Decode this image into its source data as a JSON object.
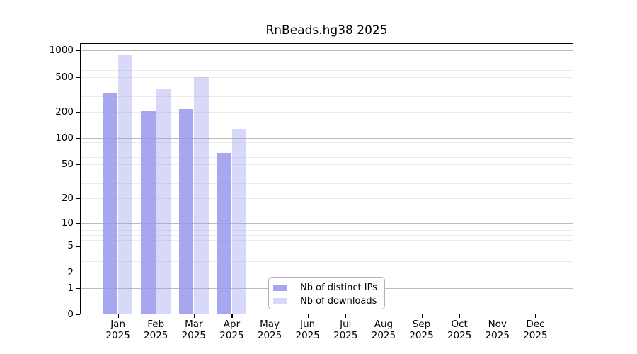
{
  "title": "RnBeads.hg38 2025",
  "chart_data": {
    "type": "bar",
    "title": "RnBeads.hg38 2025",
    "subtitle": "",
    "categories": [
      "Jan",
      "Feb",
      "Mar",
      "Apr",
      "May",
      "Jun",
      "Jul",
      "Aug",
      "Sep",
      "Oct",
      "Nov",
      "Dec"
    ],
    "category_year": "2025",
    "series": [
      {
        "name": "Nb of distinct IPs",
        "color": "rgba(152,152,237,0.85)",
        "approx_hex_on_white": "#a7a7f0",
        "values": [
          325,
          202,
          217,
          67,
          null,
          null,
          null,
          null,
          null,
          null,
          null,
          null
        ]
      },
      {
        "name": "Nb of downloads",
        "color": "rgba(152,152,237,0.38)",
        "approx_hex_on_white": "#d8d8f6",
        "values": [
          890,
          368,
          500,
          127,
          null,
          null,
          null,
          null,
          null,
          null,
          null,
          null
        ]
      }
    ],
    "yscale": "log1p",
    "ylim": [
      0,
      1210
    ],
    "yticks": [
      1000,
      500,
      200,
      100,
      50,
      20,
      10,
      5,
      2,
      1,
      0
    ],
    "xlabel": "",
    "ylabel": "",
    "grid": {
      "major_values": [
        1000,
        100,
        10,
        1
      ],
      "minor_decades": [
        1,
        10,
        100
      ],
      "minor_multiples": [
        2,
        3,
        4,
        5,
        6,
        7,
        8,
        9
      ],
      "major_color": "#bcbcbc",
      "minor_color": "#ebebeb"
    },
    "legend_position": "lower-center-left-inside",
    "axis_color": "#000000",
    "background_color": "#ffffff"
  },
  "legend": {
    "items": [
      {
        "label": "Nb of distinct IPs",
        "color": "rgba(152,152,237,0.85)"
      },
      {
        "label": "Nb of downloads",
        "color": "rgba(152,152,237,0.38)"
      }
    ]
  }
}
